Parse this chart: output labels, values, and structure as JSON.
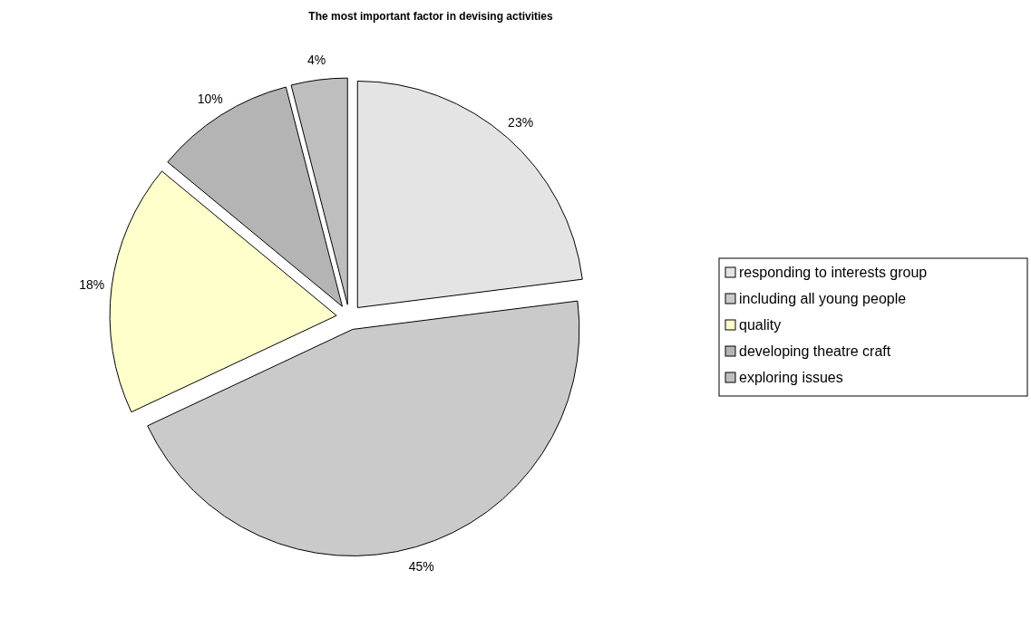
{
  "chart_data": {
    "type": "pie",
    "title": "The most important factor in devising activities",
    "categories": [
      "responding to interests group",
      "including all young people",
      "quality",
      "developing theatre craft",
      "exploring issues"
    ],
    "values": [
      23,
      45,
      18,
      10,
      4
    ],
    "colors": [
      "#e4e4e4",
      "#cacaca",
      "#ffffcc",
      "#b4b4b4",
      "#bebebe"
    ],
    "value_labels": [
      "23%",
      "45%",
      "18%",
      "10%",
      "4%"
    ],
    "legend": "right"
  }
}
